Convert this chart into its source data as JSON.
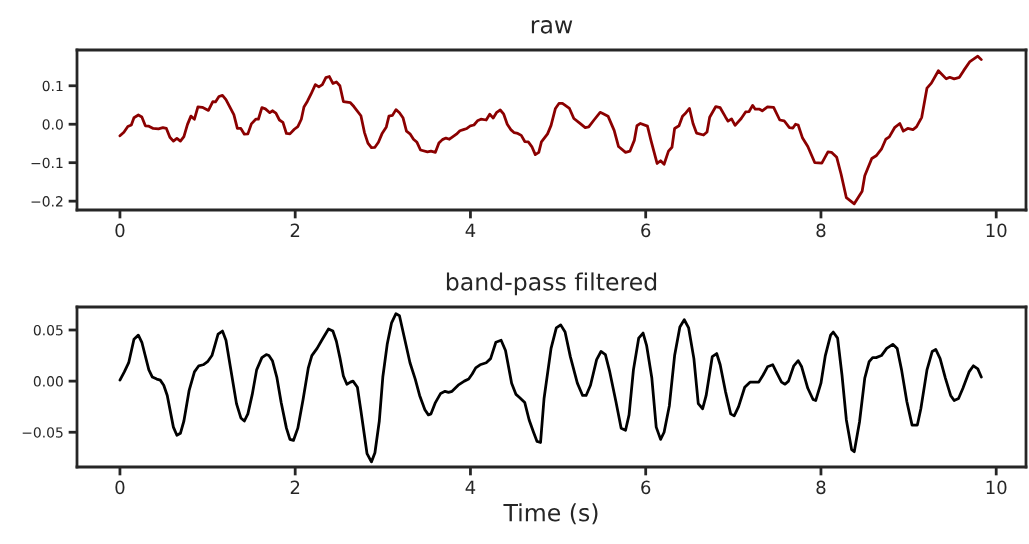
{
  "chart_data": [
    {
      "type": "line",
      "title": "raw",
      "xlim": [
        -0.49,
        10.34
      ],
      "ylim": [
        -0.223,
        0.193
      ],
      "xticks": [
        0,
        2,
        4,
        6,
        8,
        10
      ],
      "yticks": [
        {
          "value": -0.2,
          "label": "−0.2"
        },
        {
          "value": -0.1,
          "label": "−0.1"
        },
        {
          "value": 0.0,
          "label": "0.0"
        },
        {
          "value": 0.1,
          "label": "0.1"
        }
      ],
      "grid": false,
      "series": [
        {
          "color": "#8b0000",
          "x": [
            0,
            0.045,
            0.09,
            0.13,
            0.16,
            0.21,
            0.25,
            0.29,
            0.33,
            0.38,
            0.44,
            0.49,
            0.53,
            0.57,
            0.61,
            0.65,
            0.69,
            0.73,
            0.77,
            0.81,
            0.85,
            0.89,
            0.94,
            1.01,
            1.06,
            1.09,
            1.13,
            1.17,
            1.21,
            1.3,
            1.34,
            1.38,
            1.42,
            1.46,
            1.5,
            1.55,
            1.58,
            1.62,
            1.66,
            1.71,
            1.74,
            1.78,
            1.82,
            1.86,
            1.9,
            1.94,
            1.99,
            2.03,
            2.07,
            2.1,
            2.14,
            2.18,
            2.23,
            2.27,
            2.31,
            2.35,
            2.39,
            2.43,
            2.47,
            2.51,
            2.55,
            2.63,
            2.67,
            2.75,
            2.79,
            2.83,
            2.87,
            2.91,
            2.95,
            2.99,
            3.04,
            3.07,
            3.11,
            3.15,
            3.19,
            3.23,
            3.27,
            3.31,
            3.35,
            3.39,
            3.43,
            3.51,
            3.55,
            3.6,
            3.64,
            3.68,
            3.72,
            3.76,
            3.84,
            3.88,
            3.92,
            3.96,
            4.0,
            4.04,
            4.08,
            4.12,
            4.18,
            4.22,
            4.26,
            4.3,
            4.34,
            4.38,
            4.42,
            4.46,
            4.5,
            4.54,
            4.58,
            4.62,
            4.66,
            4.7,
            4.74,
            4.78,
            4.81,
            4.88,
            4.92,
            4.97,
            5.01,
            5.05,
            5.13,
            5.18,
            5.24,
            5.31,
            5.35,
            5.41,
            5.48,
            5.51,
            5.57,
            5.64,
            5.69,
            5.77,
            5.82,
            5.87,
            5.9,
            5.94,
            6.02,
            6.06,
            6.13,
            6.17,
            6.21,
            6.26,
            6.3,
            6.33,
            6.38,
            6.42,
            6.46,
            6.5,
            6.54,
            6.58,
            6.66,
            6.7,
            6.73,
            6.8,
            6.85,
            6.91,
            6.94,
            6.98,
            7.02,
            7.09,
            7.14,
            7.18,
            7.22,
            7.25,
            7.3,
            7.33,
            7.39,
            7.46,
            7.53,
            7.58,
            7.64,
            7.68,
            7.71,
            7.74,
            7.79,
            7.85,
            7.93,
            8.01,
            8.08,
            8.12,
            8.18,
            8.23,
            8.29,
            8.38,
            8.47,
            8.5,
            8.58,
            8.63,
            8.69,
            8.74,
            8.78,
            8.84,
            8.9,
            8.94,
            8.99,
            9.05,
            9.09,
            9.15,
            9.21,
            9.26,
            9.34,
            9.43,
            9.47,
            9.52,
            9.58,
            9.63,
            9.7,
            9.79,
            9.83
          ],
          "values": [
            -0.03,
            -0.021,
            -0.006,
            -0.002,
            0.017,
            0.024,
            0.019,
            -0.004,
            -0.005,
            -0.011,
            -0.012,
            -0.009,
            -0.011,
            -0.034,
            -0.044,
            -0.037,
            -0.044,
            -0.032,
            -0.001,
            0.021,
            0.013,
            0.045,
            0.044,
            0.036,
            0.059,
            0.058,
            0.072,
            0.075,
            0.064,
            0.025,
            -0.011,
            -0.011,
            -0.026,
            -0.025,
            0.001,
            0.013,
            0.013,
            0.043,
            0.04,
            0.03,
            0.035,
            0.029,
            0.011,
            0.005,
            -0.024,
            -0.025,
            -0.013,
            -0.006,
            0.013,
            0.045,
            0.06,
            0.078,
            0.103,
            0.097,
            0.103,
            0.121,
            0.124,
            0.106,
            0.11,
            0.1,
            0.059,
            0.056,
            0.046,
            0.022,
            -0.021,
            -0.049,
            -0.061,
            -0.06,
            -0.047,
            -0.025,
            -0.007,
            0.021,
            0.023,
            0.038,
            0.03,
            0.017,
            -0.018,
            -0.025,
            -0.039,
            -0.047,
            -0.067,
            -0.072,
            -0.07,
            -0.073,
            -0.049,
            -0.04,
            -0.036,
            -0.039,
            -0.026,
            -0.017,
            -0.014,
            -0.011,
            -0.004,
            -0.002,
            0.009,
            0.013,
            0.011,
            0.026,
            0.016,
            0.031,
            0.037,
            0.026,
            0.0,
            -0.014,
            -0.022,
            -0.024,
            -0.029,
            -0.045,
            -0.046,
            -0.058,
            -0.079,
            -0.073,
            -0.046,
            -0.025,
            -0.003,
            0.041,
            0.054,
            0.054,
            0.041,
            0.015,
            0.004,
            -0.009,
            -0.007,
            0.011,
            0.031,
            0.028,
            0.021,
            -0.016,
            -0.058,
            -0.073,
            -0.07,
            -0.042,
            -0.004,
            0.002,
            -0.005,
            -0.042,
            -0.102,
            -0.095,
            -0.104,
            -0.07,
            -0.06,
            -0.011,
            -0.004,
            0.021,
            0.03,
            0.041,
            0.002,
            -0.023,
            -0.028,
            -0.02,
            0.018,
            0.046,
            0.043,
            0.019,
            0.008,
            0.014,
            -0.003,
            0.015,
            0.032,
            0.033,
            0.049,
            0.039,
            0.039,
            0.035,
            0.045,
            0.044,
            0.011,
            0.009,
            -0.009,
            -0.01,
            0.0,
            -0.002,
            -0.036,
            -0.058,
            -0.1,
            -0.101,
            -0.072,
            -0.073,
            -0.086,
            -0.13,
            -0.191,
            -0.207,
            -0.174,
            -0.134,
            -0.089,
            -0.082,
            -0.065,
            -0.039,
            -0.033,
            -0.009,
            0.002,
            -0.018,
            -0.011,
            -0.014,
            -0.007,
            0.018,
            0.094,
            0.107,
            0.139,
            0.118,
            0.122,
            0.118,
            0.122,
            0.14,
            0.163,
            0.177,
            0.168
          ]
        }
      ]
    },
    {
      "type": "line",
      "title": "band-pass filtered",
      "xlabel": "Time (s)",
      "xlim": [
        -0.49,
        10.34
      ],
      "ylim": [
        -0.084,
        0.0725
      ],
      "xticks": [
        0,
        2,
        4,
        6,
        8,
        10
      ],
      "yticks": [
        {
          "value": -0.05,
          "label": "−0.05"
        },
        {
          "value": 0.0,
          "label": "0.00"
        },
        {
          "value": 0.05,
          "label": "0.05"
        }
      ],
      "grid": false,
      "series": [
        {
          "color": "#000000",
          "x": [
            0,
            0.05,
            0.1,
            0.16,
            0.21,
            0.25,
            0.33,
            0.37,
            0.42,
            0.46,
            0.5,
            0.54,
            0.61,
            0.65,
            0.69,
            0.73,
            0.79,
            0.85,
            0.9,
            0.95,
            1.0,
            1.05,
            1.12,
            1.17,
            1.21,
            1.26,
            1.33,
            1.38,
            1.42,
            1.46,
            1.51,
            1.56,
            1.62,
            1.67,
            1.7,
            1.74,
            1.79,
            1.84,
            1.9,
            1.94,
            1.98,
            2.03,
            2.09,
            2.15,
            2.19,
            2.25,
            2.31,
            2.38,
            2.43,
            2.47,
            2.51,
            2.55,
            2.59,
            2.63,
            2.66,
            2.71,
            2.75,
            2.82,
            2.87,
            2.91,
            2.96,
            3.0,
            3.05,
            3.1,
            3.15,
            3.19,
            3.25,
            3.31,
            3.37,
            3.42,
            3.48,
            3.52,
            3.55,
            3.6,
            3.66,
            3.71,
            3.75,
            3.79,
            3.86,
            3.93,
            3.98,
            4.02,
            4.06,
            4.11,
            4.18,
            4.23,
            4.29,
            4.35,
            4.4,
            4.47,
            4.52,
            4.56,
            4.62,
            4.67,
            4.72,
            4.76,
            4.8,
            4.84,
            4.92,
            4.98,
            5.03,
            5.08,
            5.14,
            5.22,
            5.28,
            5.32,
            5.37,
            5.44,
            5.49,
            5.54,
            5.59,
            5.66,
            5.72,
            5.77,
            5.81,
            5.86,
            5.92,
            5.97,
            6.01,
            6.07,
            6.12,
            6.17,
            6.21,
            6.27,
            6.33,
            6.39,
            6.44,
            6.49,
            6.55,
            6.6,
            6.65,
            6.69,
            6.76,
            6.81,
            6.85,
            6.91,
            6.97,
            7.01,
            7.06,
            7.13,
            7.19,
            7.24,
            7.29,
            7.34,
            7.39,
            7.45,
            7.49,
            7.55,
            7.59,
            7.63,
            7.69,
            7.74,
            7.78,
            7.85,
            7.91,
            7.94,
            8.0,
            8.05,
            8.11,
            8.14,
            8.19,
            8.24,
            8.29,
            8.35,
            8.38,
            8.44,
            8.5,
            8.55,
            8.59,
            8.63,
            8.69,
            8.75,
            8.82,
            8.87,
            8.92,
            8.98,
            9.04,
            9.1,
            9.14,
            9.21,
            9.27,
            9.31,
            9.36,
            9.42,
            9.48,
            9.52,
            9.57,
            9.62,
            9.69,
            9.74,
            9.79,
            9.83
          ],
          "values": [
            0.001,
            0.009,
            0.018,
            0.041,
            0.045,
            0.038,
            0.011,
            0.004,
            0.002,
            0.001,
            -0.004,
            -0.014,
            -0.045,
            -0.053,
            -0.051,
            -0.039,
            -0.009,
            0.009,
            0.015,
            0.016,
            0.019,
            0.025,
            0.046,
            0.049,
            0.04,
            0.014,
            -0.022,
            -0.036,
            -0.039,
            -0.032,
            -0.013,
            0.011,
            0.023,
            0.026,
            0.025,
            0.02,
            0.004,
            -0.021,
            -0.046,
            -0.057,
            -0.058,
            -0.046,
            -0.018,
            0.013,
            0.025,
            0.032,
            0.041,
            0.051,
            0.049,
            0.039,
            0.023,
            0.005,
            -0.003,
            -0.001,
            0.0,
            -0.006,
            -0.029,
            -0.071,
            -0.079,
            -0.07,
            -0.039,
            0.004,
            0.036,
            0.057,
            0.066,
            0.064,
            0.041,
            0.018,
            0.002,
            -0.014,
            -0.028,
            -0.033,
            -0.032,
            -0.021,
            -0.012,
            -0.01,
            -0.011,
            -0.01,
            -0.004,
            0.0,
            0.002,
            0.007,
            0.013,
            0.016,
            0.018,
            0.022,
            0.038,
            0.04,
            0.03,
            -0.002,
            -0.013,
            -0.016,
            -0.021,
            -0.038,
            -0.05,
            -0.059,
            -0.06,
            -0.017,
            0.032,
            0.052,
            0.055,
            0.048,
            0.024,
            -0.002,
            -0.014,
            -0.014,
            -0.004,
            0.021,
            0.029,
            0.026,
            0.009,
            -0.02,
            -0.046,
            -0.048,
            -0.033,
            0.011,
            0.042,
            0.047,
            0.035,
            0.003,
            -0.045,
            -0.057,
            -0.05,
            -0.024,
            0.025,
            0.053,
            0.06,
            0.052,
            0.022,
            -0.022,
            -0.027,
            -0.014,
            0.024,
            0.027,
            0.016,
            -0.01,
            -0.032,
            -0.034,
            -0.025,
            -0.006,
            -0.001,
            -0.001,
            -0.001,
            0.006,
            0.014,
            0.016,
            0.009,
            -0.001,
            -0.003,
            0.0,
            0.015,
            0.02,
            0.014,
            -0.007,
            -0.018,
            -0.019,
            -0.002,
            0.025,
            0.045,
            0.048,
            0.042,
            0.006,
            -0.038,
            -0.067,
            -0.069,
            -0.04,
            0.003,
            0.019,
            0.023,
            0.023,
            0.025,
            0.032,
            0.036,
            0.032,
            0.011,
            -0.02,
            -0.043,
            -0.043,
            -0.027,
            0.011,
            0.029,
            0.031,
            0.022,
            0.003,
            -0.014,
            -0.019,
            -0.017,
            -0.007,
            0.009,
            0.015,
            0.012,
            0.004
          ]
        }
      ]
    }
  ]
}
